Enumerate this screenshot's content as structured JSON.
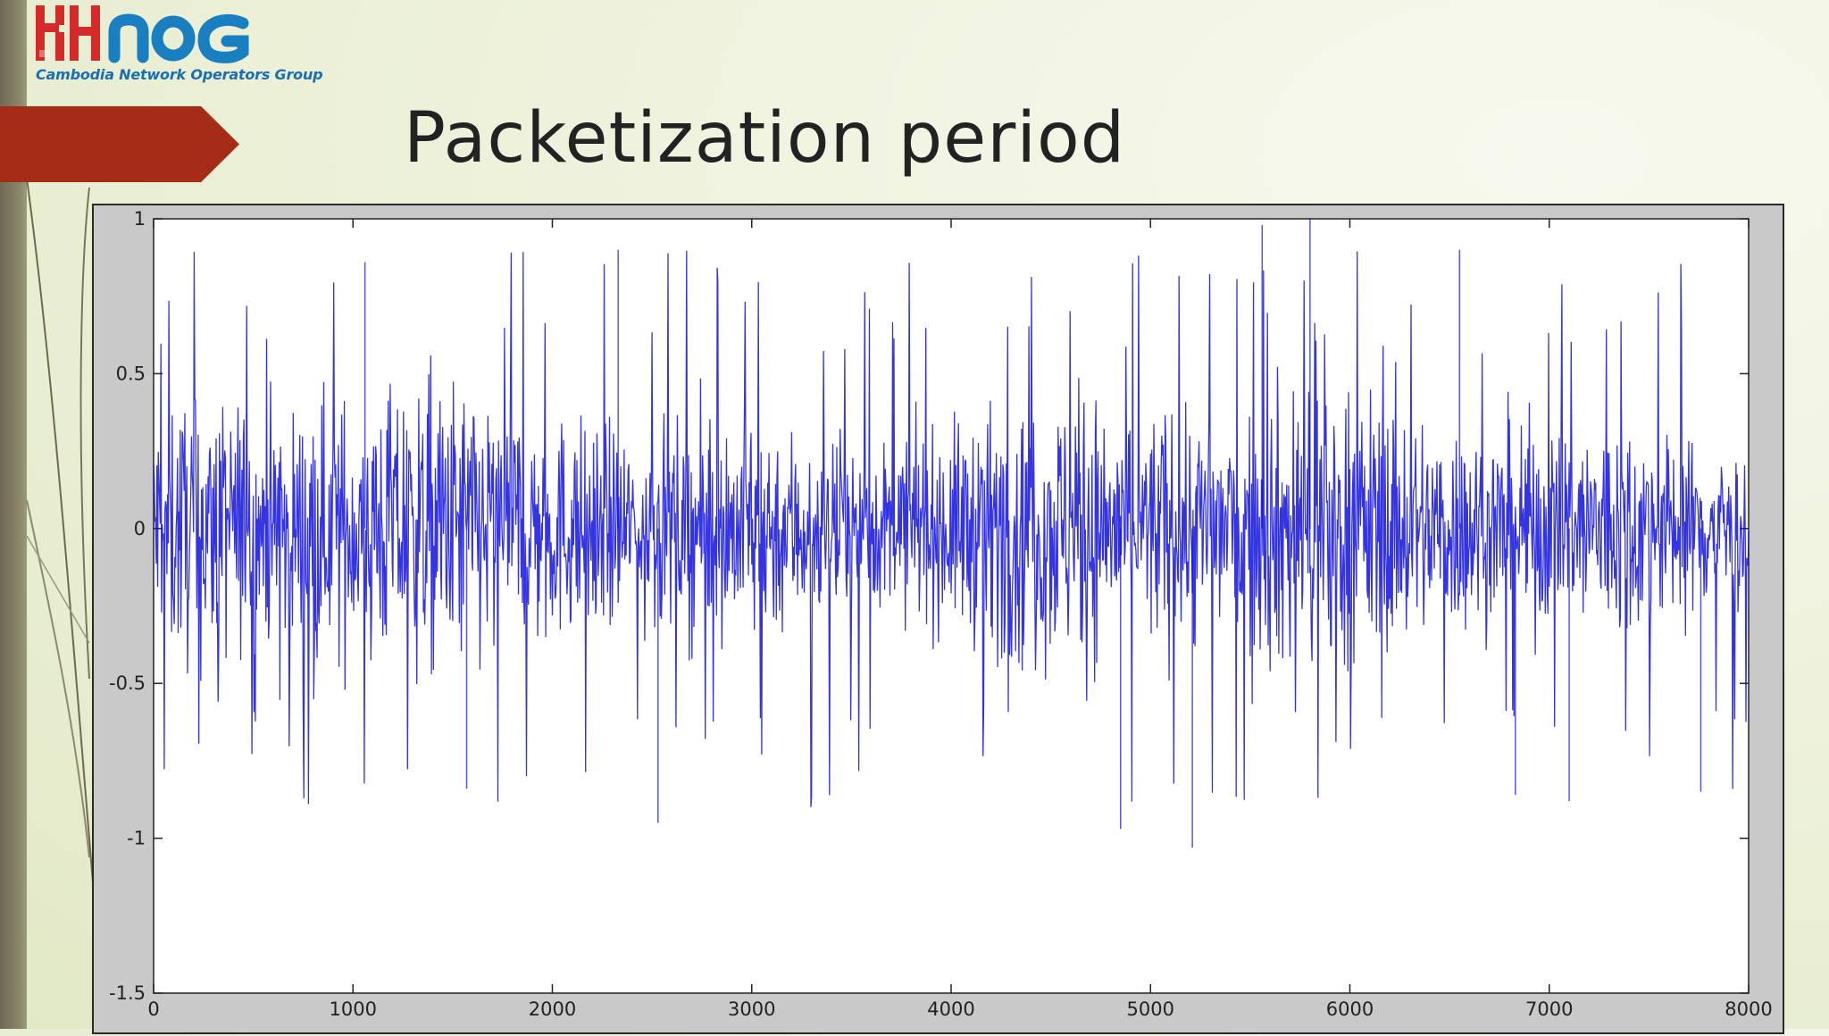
{
  "slide": {
    "title": "Packetization period",
    "logo_name": "KHNOG",
    "logo_subtitle": "Cambodia Network Operators Group"
  },
  "colors": {
    "accent_arrow": "#a52d17",
    "series": "#1010dd",
    "logo_red": "#d42a2a",
    "logo_blue": "#1a7fc0"
  },
  "chart_data": {
    "type": "line",
    "title": "",
    "xlabel": "",
    "ylabel": "",
    "xlim": [
      0,
      8000
    ],
    "ylim": [
      -1.5,
      1
    ],
    "x_ticks": [
      "0",
      "1000",
      "2000",
      "3000",
      "4000",
      "5000",
      "6000",
      "7000",
      "8000"
    ],
    "y_ticks": [
      "1",
      "0.5",
      "0",
      "-0.5",
      "-1",
      "-1.5"
    ],
    "grid": false,
    "legend": "none",
    "series": [
      {
        "name": "",
        "description": "audio waveform, 8000 samples, amplitude mostly within ±0.5, peaks near 1.0 and -1.0",
        "x_start": 0,
        "x_end": 8000,
        "typical_envelope": 0.35,
        "peak_max": 1.0,
        "peak_min": -1.03
      }
    ]
  }
}
